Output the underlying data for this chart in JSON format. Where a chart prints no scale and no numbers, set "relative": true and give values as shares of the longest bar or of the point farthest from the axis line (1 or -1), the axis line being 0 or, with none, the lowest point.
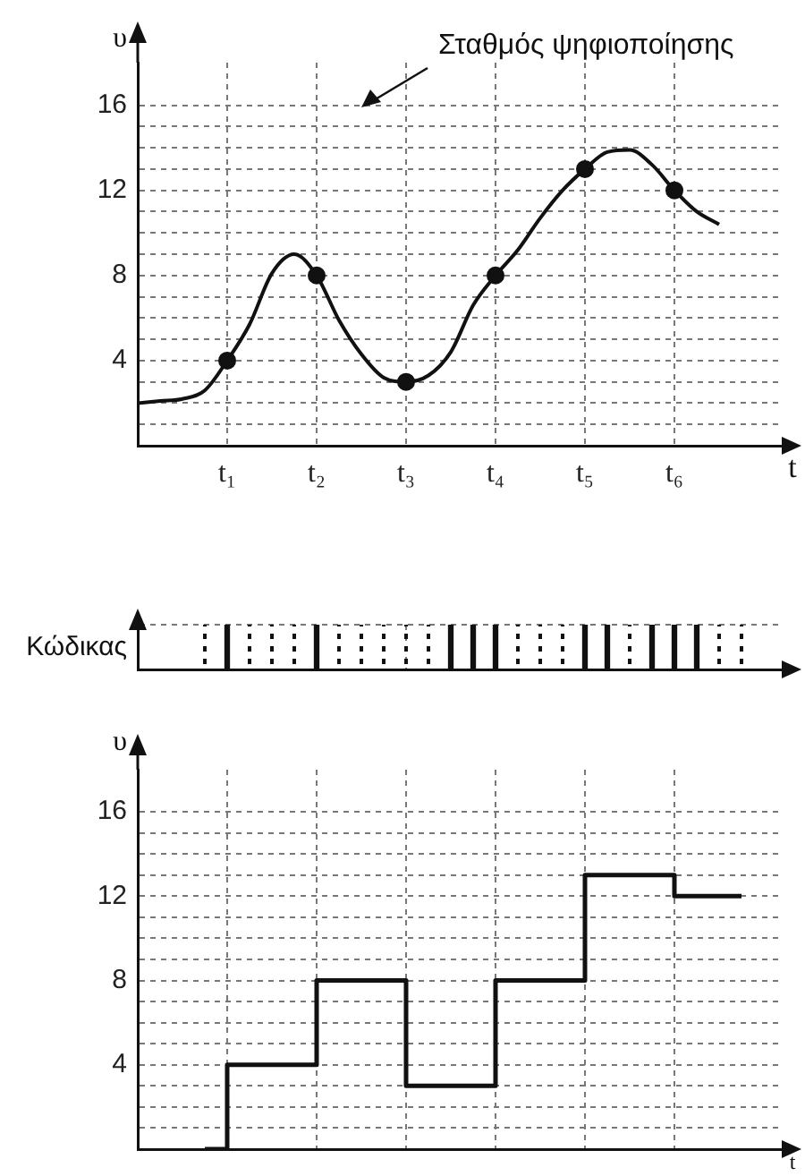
{
  "chart_data": [
    {
      "type": "line",
      "xlabel": "t",
      "ylabel": "υ",
      "annotations": [
        "Σταθμός ψηφιοποίησης"
      ],
      "ylim": [
        0,
        18
      ],
      "categories": [
        null,
        null,
        null,
        null,
        "t₁",
        null,
        null,
        null,
        "t₂",
        null,
        null,
        null,
        "t₃",
        null,
        null,
        null,
        "t₄",
        null,
        null,
        null,
        "t₅",
        null,
        null,
        null,
        "t₆",
        null,
        null,
        null
      ],
      "yticks": [
        {
          "value": 1,
          "label": null
        },
        {
          "value": 2,
          "label": null
        },
        {
          "value": 3,
          "label": null
        },
        4,
        {
          "value": 5,
          "label": null
        },
        {
          "value": 6,
          "label": null
        },
        {
          "value": 7,
          "label": null
        },
        8,
        {
          "value": 9,
          "label": null
        },
        {
          "value": 10,
          "label": null
        },
        {
          "value": 11,
          "label": null
        },
        12,
        {
          "value": 13,
          "label": null
        },
        {
          "value": 14,
          "label": null
        },
        {
          "value": 15,
          "label": null
        },
        16
      ],
      "grid": true,
      "series": [
        {
          "color": "#111111",
          "values": [
            2,
            2.1,
            2.2,
            2.6,
            4,
            5.7,
            8.1,
            9,
            8,
            5.9,
            4.3,
            3.2,
            3,
            3.3,
            4.4,
            6.6,
            8,
            9.2,
            10.7,
            12,
            13,
            13.8,
            13.9,
            13.2,
            12,
            11,
            10.4,
            null
          ]
        },
        {
          "type": "scatter",
          "marker": "circle",
          "color": "#111111",
          "values": [
            null,
            null,
            null,
            null,
            4,
            null,
            null,
            null,
            8,
            null,
            null,
            null,
            3,
            null,
            null,
            null,
            8,
            null,
            null,
            null,
            13,
            null,
            null,
            null,
            12,
            null,
            null,
            null
          ]
        }
      ]
    },
    {
      "type": "bar",
      "ylabel": "Κώδικας",
      "relative": true,
      "categories": [
        null,
        null,
        null,
        null,
        null,
        null,
        null,
        null,
        null,
        null,
        null,
        null,
        null,
        null,
        null,
        null,
        null,
        null,
        null,
        null,
        null,
        null,
        null,
        null,
        null,
        null,
        null,
        null
      ],
      "tick_labels": false,
      "grid": true,
      "color": "#111111",
      "values": [
        null,
        null,
        null,
        0,
        1,
        0,
        0,
        0,
        1,
        0,
        0,
        0,
        0,
        0,
        1,
        1,
        1,
        0,
        0,
        0,
        1,
        1,
        0,
        1,
        1,
        1,
        0,
        0
      ]
    },
    {
      "type": "step",
      "xlabel": "t",
      "ylabel": "υ",
      "ylim": [
        0,
        18
      ],
      "categories": [
        null,
        null,
        null,
        null,
        null,
        null,
        null,
        null,
        null,
        null,
        null,
        null,
        null,
        null,
        null,
        null,
        null,
        null,
        null,
        null,
        null,
        null,
        null,
        null,
        null,
        null,
        null,
        null
      ],
      "yticks": [
        {
          "value": 1,
          "label": null
        },
        {
          "value": 2,
          "label": null
        },
        {
          "value": 3,
          "label": null
        },
        4,
        {
          "value": 5,
          "label": null
        },
        {
          "value": 6,
          "label": null
        },
        {
          "value": 7,
          "label": null
        },
        8,
        {
          "value": 9,
          "label": null
        },
        {
          "value": 10,
          "label": null
        },
        {
          "value": 11,
          "label": null
        },
        12,
        {
          "value": 13,
          "label": null
        },
        {
          "value": 14,
          "label": null
        },
        {
          "value": 15,
          "label": null
        },
        16
      ],
      "tick_labels": "y",
      "grid": true,
      "color": "#111111",
      "values": [
        null,
        null,
        null,
        0,
        4,
        4,
        4,
        4,
        8,
        8,
        8,
        8,
        3,
        3,
        3,
        3,
        8,
        8,
        8,
        8,
        13,
        13,
        13,
        13,
        12,
        12,
        12,
        12
      ]
    }
  ]
}
